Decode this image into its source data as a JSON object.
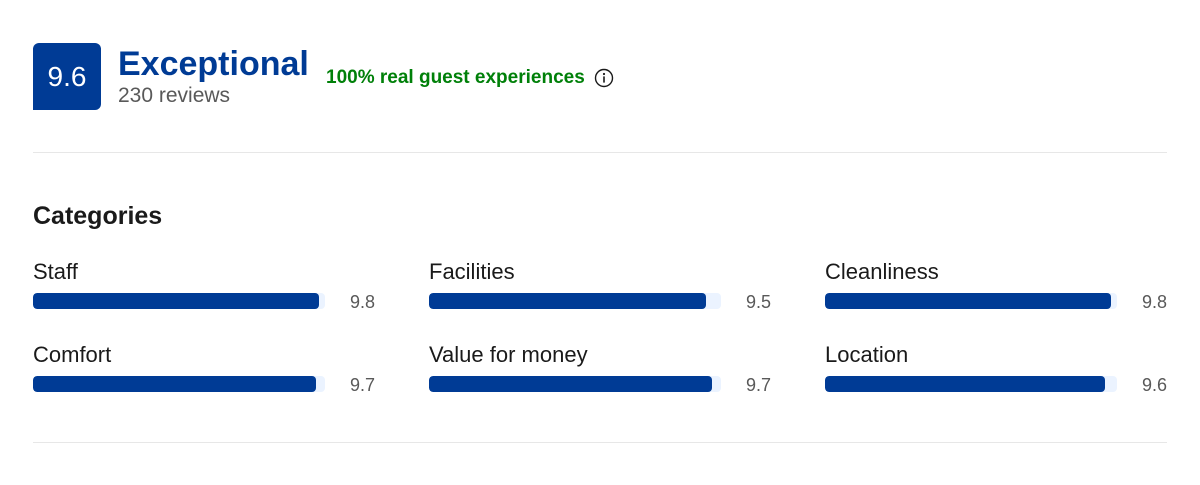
{
  "summary": {
    "score": "9.6",
    "rating_word": "Exceptional",
    "review_count": "230 reviews",
    "real_guest_text": "100% real guest experiences",
    "info_icon": "info-circle-icon"
  },
  "categories": {
    "heading": "Categories",
    "max_score": 10,
    "items": [
      {
        "label": "Staff",
        "value": "9.8",
        "fraction": 0.98
      },
      {
        "label": "Facilities",
        "value": "9.5",
        "fraction": 0.95
      },
      {
        "label": "Cleanliness",
        "value": "9.8",
        "fraction": 0.98
      },
      {
        "label": "Comfort",
        "value": "9.7",
        "fraction": 0.97
      },
      {
        "label": "Value for money",
        "value": "9.7",
        "fraction": 0.97
      },
      {
        "label": "Location",
        "value": "9.6",
        "fraction": 0.96
      }
    ]
  },
  "colors": {
    "brand_blue": "#003b95",
    "track_light_blue": "#ebf3ff",
    "green": "#008009",
    "muted_text": "#595959",
    "divider": "#e7e7e7"
  }
}
